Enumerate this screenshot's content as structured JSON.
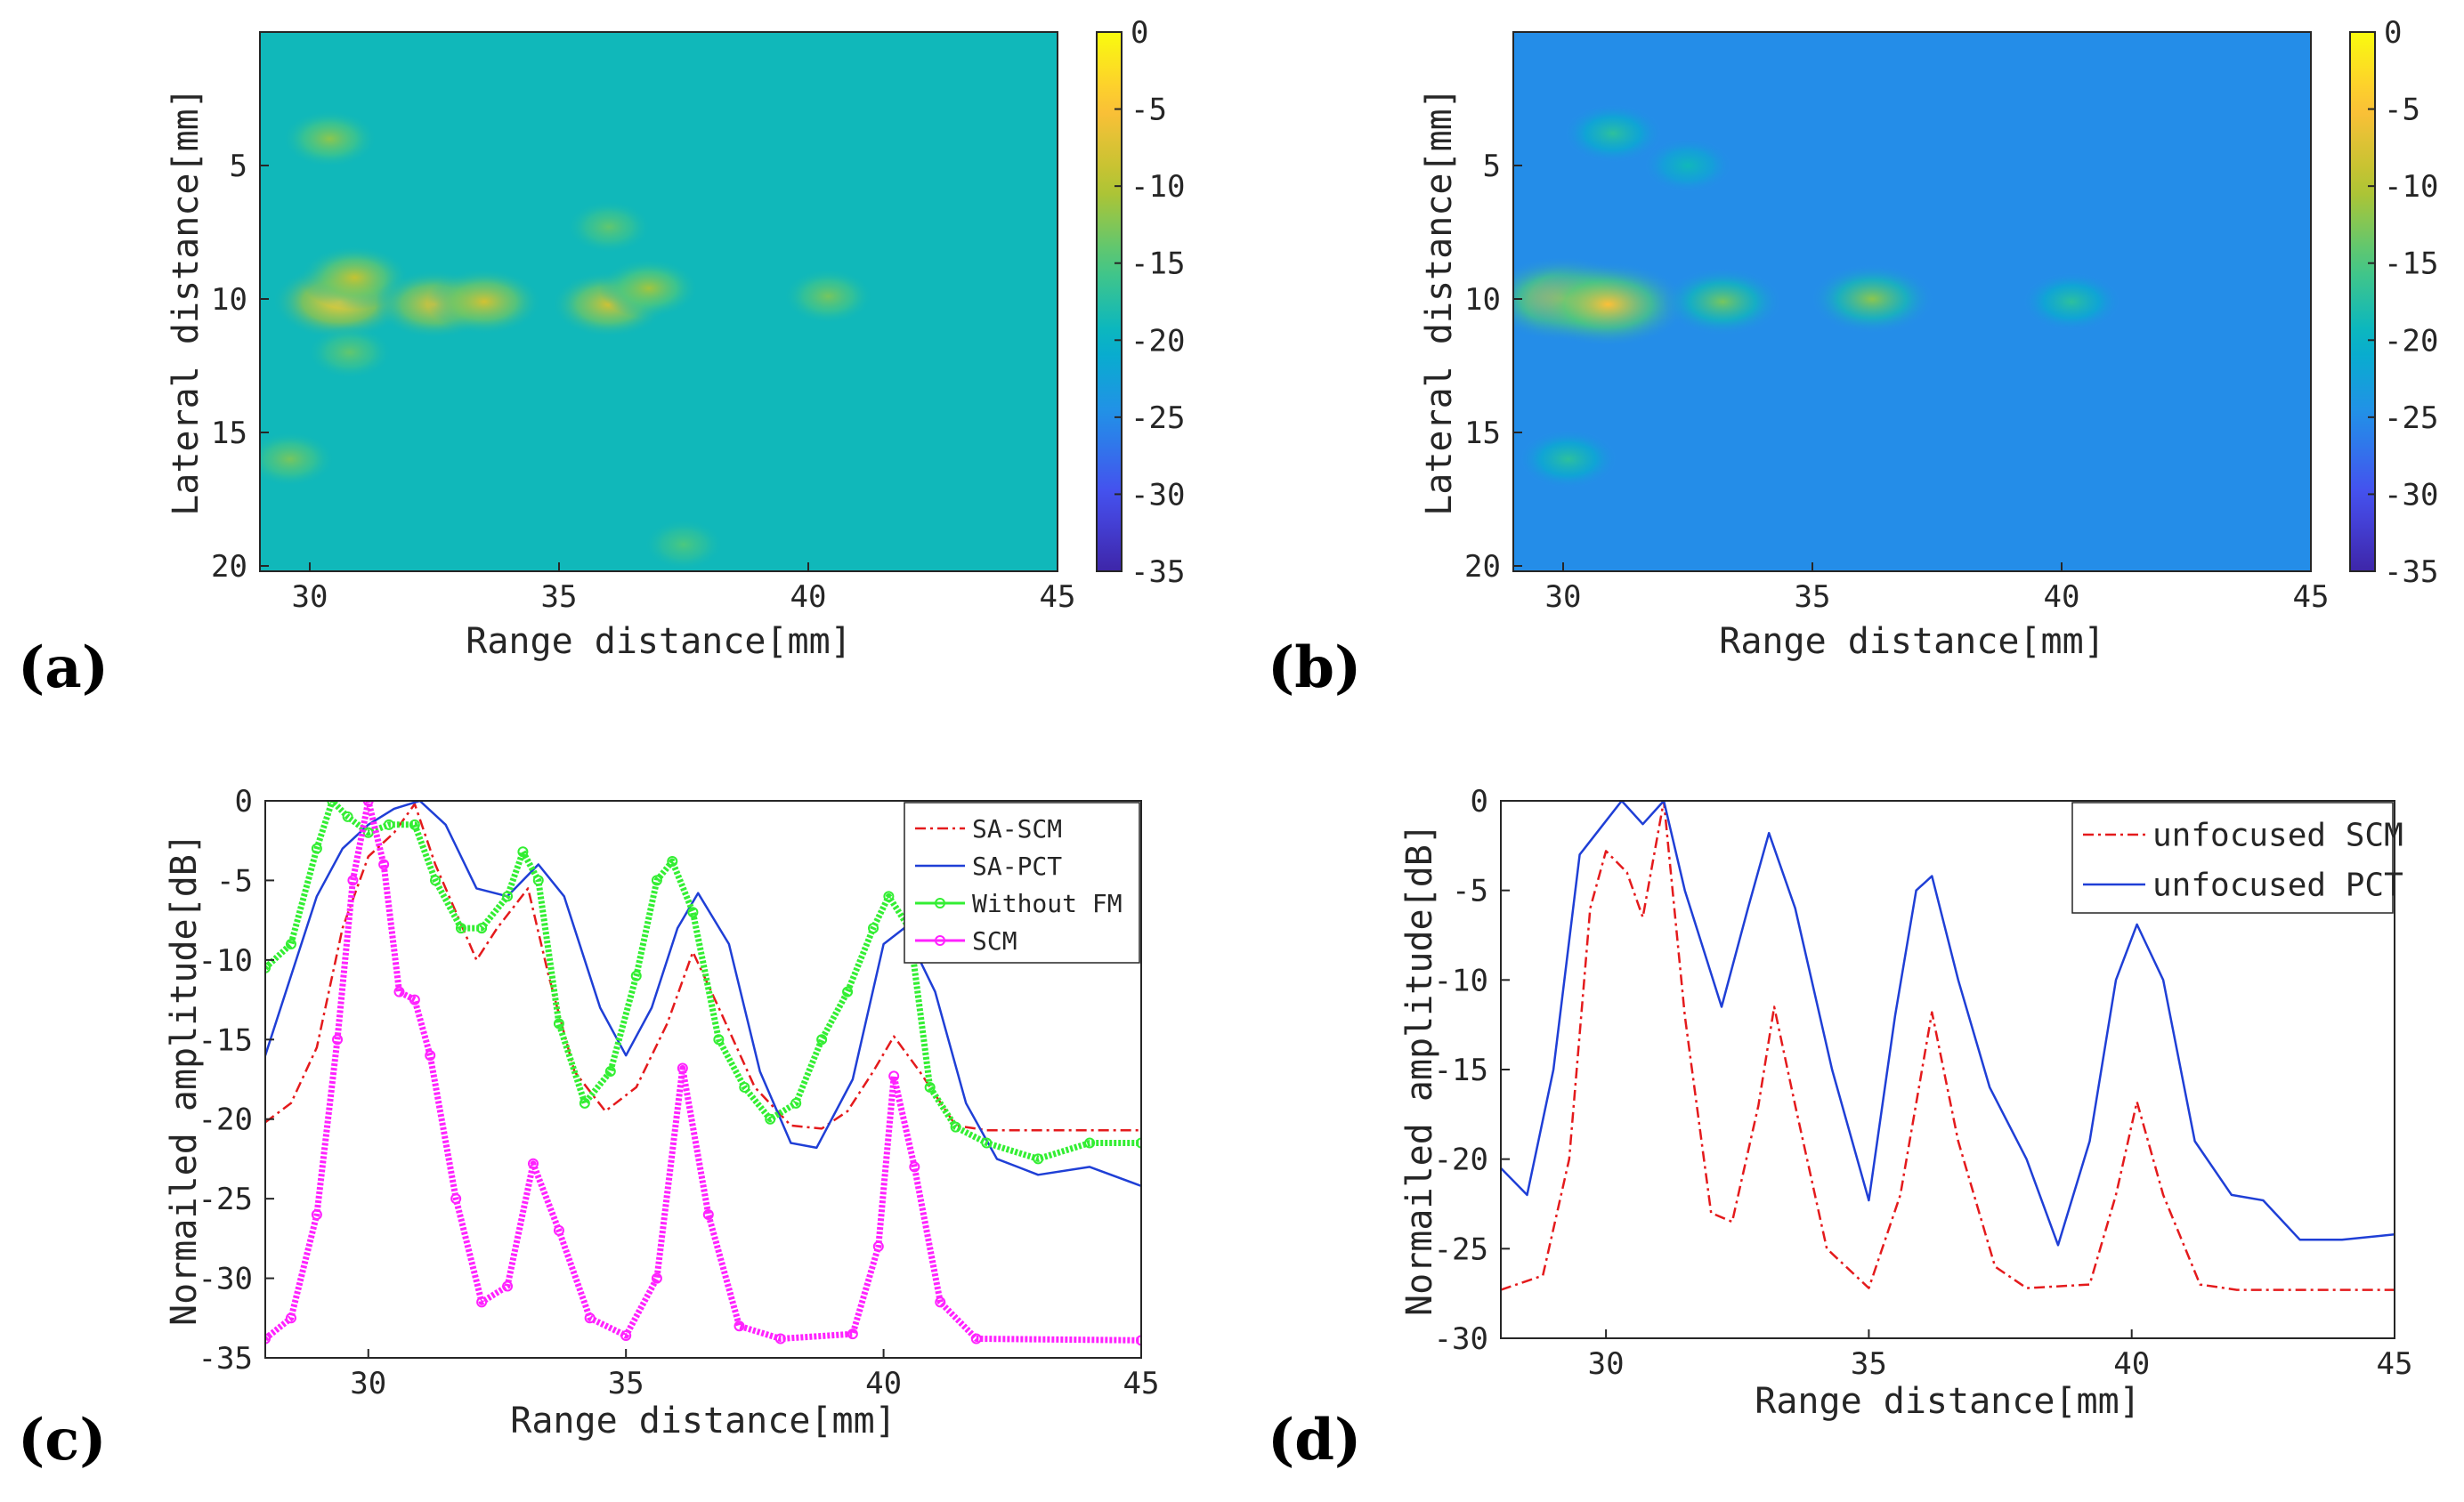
{
  "chart_data": [
    {
      "panel": "(a)",
      "type": "heatmap",
      "xlabel": "Range distance[mm]",
      "ylabel": "Lateral distance[mm]",
      "xlim": [
        29,
        45
      ],
      "ylim": [
        20.2,
        0
      ],
      "xticks": [
        30,
        35,
        40,
        45
      ],
      "yticks": [
        5,
        10,
        15,
        20
      ],
      "colorbar": {
        "range": [
          -35,
          0
        ],
        "ticks": [
          0,
          -5,
          -10,
          -15,
          -20,
          -25,
          -30,
          -35
        ]
      },
      "background_level": -19,
      "hotspots": [
        {
          "x": 30.6,
          "y": 10.1,
          "level": -4
        },
        {
          "x": 30.9,
          "y": 9.2,
          "level": -9
        },
        {
          "x": 32.5,
          "y": 10.2,
          "level": -7
        },
        {
          "x": 33.5,
          "y": 10.1,
          "level": -8
        },
        {
          "x": 36.0,
          "y": 10.2,
          "level": -8
        },
        {
          "x": 36.8,
          "y": 9.6,
          "level": -11
        },
        {
          "x": 40.4,
          "y": 9.9,
          "level": -13
        },
        {
          "x": 30.4,
          "y": 4.0,
          "level": -12
        },
        {
          "x": 36.0,
          "y": 7.3,
          "level": -14
        },
        {
          "x": 30.8,
          "y": 12.0,
          "level": -14
        },
        {
          "x": 29.6,
          "y": 16.0,
          "level": -13
        },
        {
          "x": 37.5,
          "y": 19.2,
          "level": -15
        }
      ]
    },
    {
      "panel": "(b)",
      "type": "heatmap",
      "xlabel": "Range distance[mm]",
      "ylabel": "Lateral distance[mm]",
      "xlim": [
        29,
        45
      ],
      "ylim": [
        20.2,
        0
      ],
      "xticks": [
        30,
        35,
        40,
        45
      ],
      "yticks": [
        5,
        10,
        15,
        20
      ],
      "colorbar": {
        "range": [
          -35,
          0
        ],
        "ticks": [
          0,
          -5,
          -10,
          -15,
          -20,
          -25,
          -30,
          -35
        ]
      },
      "background_level": -25,
      "hotspots": [
        {
          "x": 30.0,
          "y": 10.0,
          "level": -5
        },
        {
          "x": 30.9,
          "y": 10.2,
          "level": -5
        },
        {
          "x": 33.2,
          "y": 10.1,
          "level": -13
        },
        {
          "x": 36.2,
          "y": 10.0,
          "level": -12
        },
        {
          "x": 40.2,
          "y": 10.1,
          "level": -17
        },
        {
          "x": 31.0,
          "y": 3.8,
          "level": -17
        },
        {
          "x": 30.1,
          "y": 16.0,
          "level": -17
        },
        {
          "x": 32.5,
          "y": 5.0,
          "level": -19
        }
      ]
    },
    {
      "panel": "(c)",
      "type": "line",
      "xlabel": "Range distance[mm]",
      "ylabel": "Normailed amplitude[dB]",
      "xlim": [
        28,
        45
      ],
      "ylim": [
        -35,
        0
      ],
      "xticks": [
        30,
        35,
        40,
        45
      ],
      "yticks": [
        0,
        -5,
        -10,
        -15,
        -20,
        -25,
        -30,
        -35
      ],
      "legend_position": "top-right",
      "series": [
        {
          "name": "SA-SCM",
          "color": "#e41a1c",
          "style": "dashdot",
          "points": [
            [
              28,
              -20.2
            ],
            [
              28.5,
              -19
            ],
            [
              29,
              -15.5
            ],
            [
              29.5,
              -8
            ],
            [
              30,
              -3.5
            ],
            [
              30.5,
              -2
            ],
            [
              30.9,
              -0.2
            ],
            [
              31.3,
              -4
            ],
            [
              31.7,
              -7
            ],
            [
              32.1,
              -10
            ],
            [
              32.5,
              -8
            ],
            [
              33.1,
              -5.5
            ],
            [
              33.5,
              -11
            ],
            [
              34,
              -17
            ],
            [
              34.6,
              -19.5
            ],
            [
              35.2,
              -18
            ],
            [
              35.8,
              -14
            ],
            [
              36.3,
              -9.5
            ],
            [
              36.8,
              -13
            ],
            [
              37.5,
              -18
            ],
            [
              38.2,
              -20.4
            ],
            [
              38.8,
              -20.6
            ],
            [
              39.3,
              -19.5
            ],
            [
              39.8,
              -17
            ],
            [
              40.2,
              -14.8
            ],
            [
              40.7,
              -17
            ],
            [
              41.4,
              -20.4
            ],
            [
              42,
              -20.7
            ],
            [
              45,
              -20.7
            ]
          ]
        },
        {
          "name": "SA-PCT",
          "color": "#1f3fd6",
          "style": "solid",
          "points": [
            [
              28,
              -16
            ],
            [
              28.5,
              -11
            ],
            [
              29,
              -6
            ],
            [
              29.5,
              -3
            ],
            [
              30,
              -1.5
            ],
            [
              30.5,
              -0.5
            ],
            [
              31,
              0
            ],
            [
              31.5,
              -1.5
            ],
            [
              32.1,
              -5.5
            ],
            [
              32.7,
              -6
            ],
            [
              33.3,
              -4
            ],
            [
              33.8,
              -6
            ],
            [
              34.5,
              -13
            ],
            [
              35,
              -16
            ],
            [
              35.5,
              -13
            ],
            [
              36,
              -8
            ],
            [
              36.4,
              -5.8
            ],
            [
              37,
              -9
            ],
            [
              37.6,
              -17
            ],
            [
              38.2,
              -21.5
            ],
            [
              38.7,
              -21.8
            ],
            [
              39.4,
              -17.5
            ],
            [
              40,
              -9
            ],
            [
              40.4,
              -8
            ],
            [
              41,
              -12
            ],
            [
              41.6,
              -19
            ],
            [
              42.2,
              -22.5
            ],
            [
              43,
              -23.5
            ],
            [
              44,
              -23
            ],
            [
              45,
              -24.2
            ]
          ]
        },
        {
          "name": "Without FM",
          "color": "#33ee33",
          "style": "marker",
          "points": [
            [
              28,
              -10.5
            ],
            [
              28.5,
              -9
            ],
            [
              29,
              -3
            ],
            [
              29.3,
              0
            ],
            [
              29.6,
              -1
            ],
            [
              30,
              -2
            ],
            [
              30.4,
              -1.5
            ],
            [
              30.9,
              -1.5
            ],
            [
              31.3,
              -5
            ],
            [
              31.8,
              -8
            ],
            [
              32.2,
              -8
            ],
            [
              32.7,
              -6
            ],
            [
              33,
              -3.2
            ],
            [
              33.3,
              -5
            ],
            [
              33.7,
              -14
            ],
            [
              34.2,
              -19
            ],
            [
              34.7,
              -17
            ],
            [
              35.2,
              -11
            ],
            [
              35.6,
              -5
            ],
            [
              35.9,
              -3.8
            ],
            [
              36.3,
              -7
            ],
            [
              36.8,
              -15
            ],
            [
              37.3,
              -18
            ],
            [
              37.8,
              -20
            ],
            [
              38.3,
              -19
            ],
            [
              38.8,
              -15
            ],
            [
              39.3,
              -12
            ],
            [
              39.8,
              -8
            ],
            [
              40.1,
              -6
            ],
            [
              40.5,
              -8
            ],
            [
              40.9,
              -18
            ],
            [
              41.4,
              -20.5
            ],
            [
              42,
              -21.5
            ],
            [
              43,
              -22.5
            ],
            [
              44,
              -21.5
            ],
            [
              45,
              -21.5
            ]
          ]
        },
        {
          "name": "SCM",
          "color": "#ff22ff",
          "style": "marker",
          "points": [
            [
              28,
              -33.8
            ],
            [
              28.5,
              -32.5
            ],
            [
              29,
              -26
            ],
            [
              29.4,
              -15
            ],
            [
              29.7,
              -5
            ],
            [
              30,
              0
            ],
            [
              30.3,
              -4
            ],
            [
              30.6,
              -12
            ],
            [
              30.9,
              -12.5
            ],
            [
              31.2,
              -16
            ],
            [
              31.7,
              -25
            ],
            [
              32.2,
              -31.5
            ],
            [
              32.7,
              -30.5
            ],
            [
              33.2,
              -22.8
            ],
            [
              33.7,
              -27
            ],
            [
              34.3,
              -32.5
            ],
            [
              35,
              -33.6
            ],
            [
              35.6,
              -30
            ],
            [
              36.1,
              -16.8
            ],
            [
              36.6,
              -26
            ],
            [
              37.2,
              -33
            ],
            [
              38,
              -33.8
            ],
            [
              39.4,
              -33.5
            ],
            [
              39.9,
              -28
            ],
            [
              40.2,
              -17.3
            ],
            [
              40.6,
              -23
            ],
            [
              41.1,
              -31.5
            ],
            [
              41.8,
              -33.8
            ],
            [
              45,
              -33.9
            ]
          ]
        }
      ]
    },
    {
      "panel": "(d)",
      "type": "line",
      "xlabel": "Range distance[mm]",
      "ylabel": "Normailed amplitude[dB]",
      "xlim": [
        28,
        45
      ],
      "ylim": [
        -30,
        0
      ],
      "xticks": [
        30,
        35,
        40,
        45
      ],
      "yticks": [
        0,
        -5,
        -10,
        -15,
        -20,
        -25,
        -30
      ],
      "legend_position": "top-right",
      "series": [
        {
          "name": "unfocused SCM",
          "color": "#e41a1c",
          "style": "dashdot",
          "points": [
            [
              28,
              -27.3
            ],
            [
              28.8,
              -26.5
            ],
            [
              29.3,
              -20
            ],
            [
              29.7,
              -6
            ],
            [
              30,
              -2.8
            ],
            [
              30.4,
              -4
            ],
            [
              30.7,
              -6.5
            ],
            [
              31.1,
              0
            ],
            [
              31.5,
              -12
            ],
            [
              32,
              -23
            ],
            [
              32.4,
              -23.5
            ],
            [
              32.9,
              -17
            ],
            [
              33.2,
              -11.5
            ],
            [
              33.6,
              -17
            ],
            [
              34.2,
              -25
            ],
            [
              35,
              -27.2
            ],
            [
              35.6,
              -22
            ],
            [
              36.2,
              -11.8
            ],
            [
              36.7,
              -19
            ],
            [
              37.4,
              -26
            ],
            [
              38,
              -27.2
            ],
            [
              39.2,
              -27
            ],
            [
              39.7,
              -22
            ],
            [
              40.1,
              -16.8
            ],
            [
              40.6,
              -22
            ],
            [
              41.3,
              -27
            ],
            [
              42,
              -27.3
            ],
            [
              45,
              -27.3
            ]
          ]
        },
        {
          "name": "unfocused PCT",
          "color": "#1f3fd6",
          "style": "solid",
          "points": [
            [
              28,
              -20.5
            ],
            [
              28.5,
              -22
            ],
            [
              29,
              -15
            ],
            [
              29.5,
              -3
            ],
            [
              29.9,
              -1.5
            ],
            [
              30.3,
              0
            ],
            [
              30.7,
              -1.3
            ],
            [
              31.1,
              0
            ],
            [
              31.5,
              -5
            ],
            [
              32.2,
              -11.5
            ],
            [
              32.7,
              -6
            ],
            [
              33.1,
              -1.8
            ],
            [
              33.6,
              -6
            ],
            [
              34.3,
              -15
            ],
            [
              35,
              -22.3
            ],
            [
              35.5,
              -12
            ],
            [
              35.9,
              -5
            ],
            [
              36.2,
              -4.2
            ],
            [
              36.7,
              -10
            ],
            [
              37.3,
              -16
            ],
            [
              38,
              -20
            ],
            [
              38.6,
              -24.8
            ],
            [
              39.2,
              -19
            ],
            [
              39.7,
              -10
            ],
            [
              40.1,
              -6.9
            ],
            [
              40.6,
              -10
            ],
            [
              41.2,
              -19
            ],
            [
              41.9,
              -22
            ],
            [
              42.5,
              -22.3
            ],
            [
              43.2,
              -24.5
            ],
            [
              44,
              -24.5
            ],
            [
              45,
              -24.2
            ]
          ]
        }
      ]
    }
  ]
}
